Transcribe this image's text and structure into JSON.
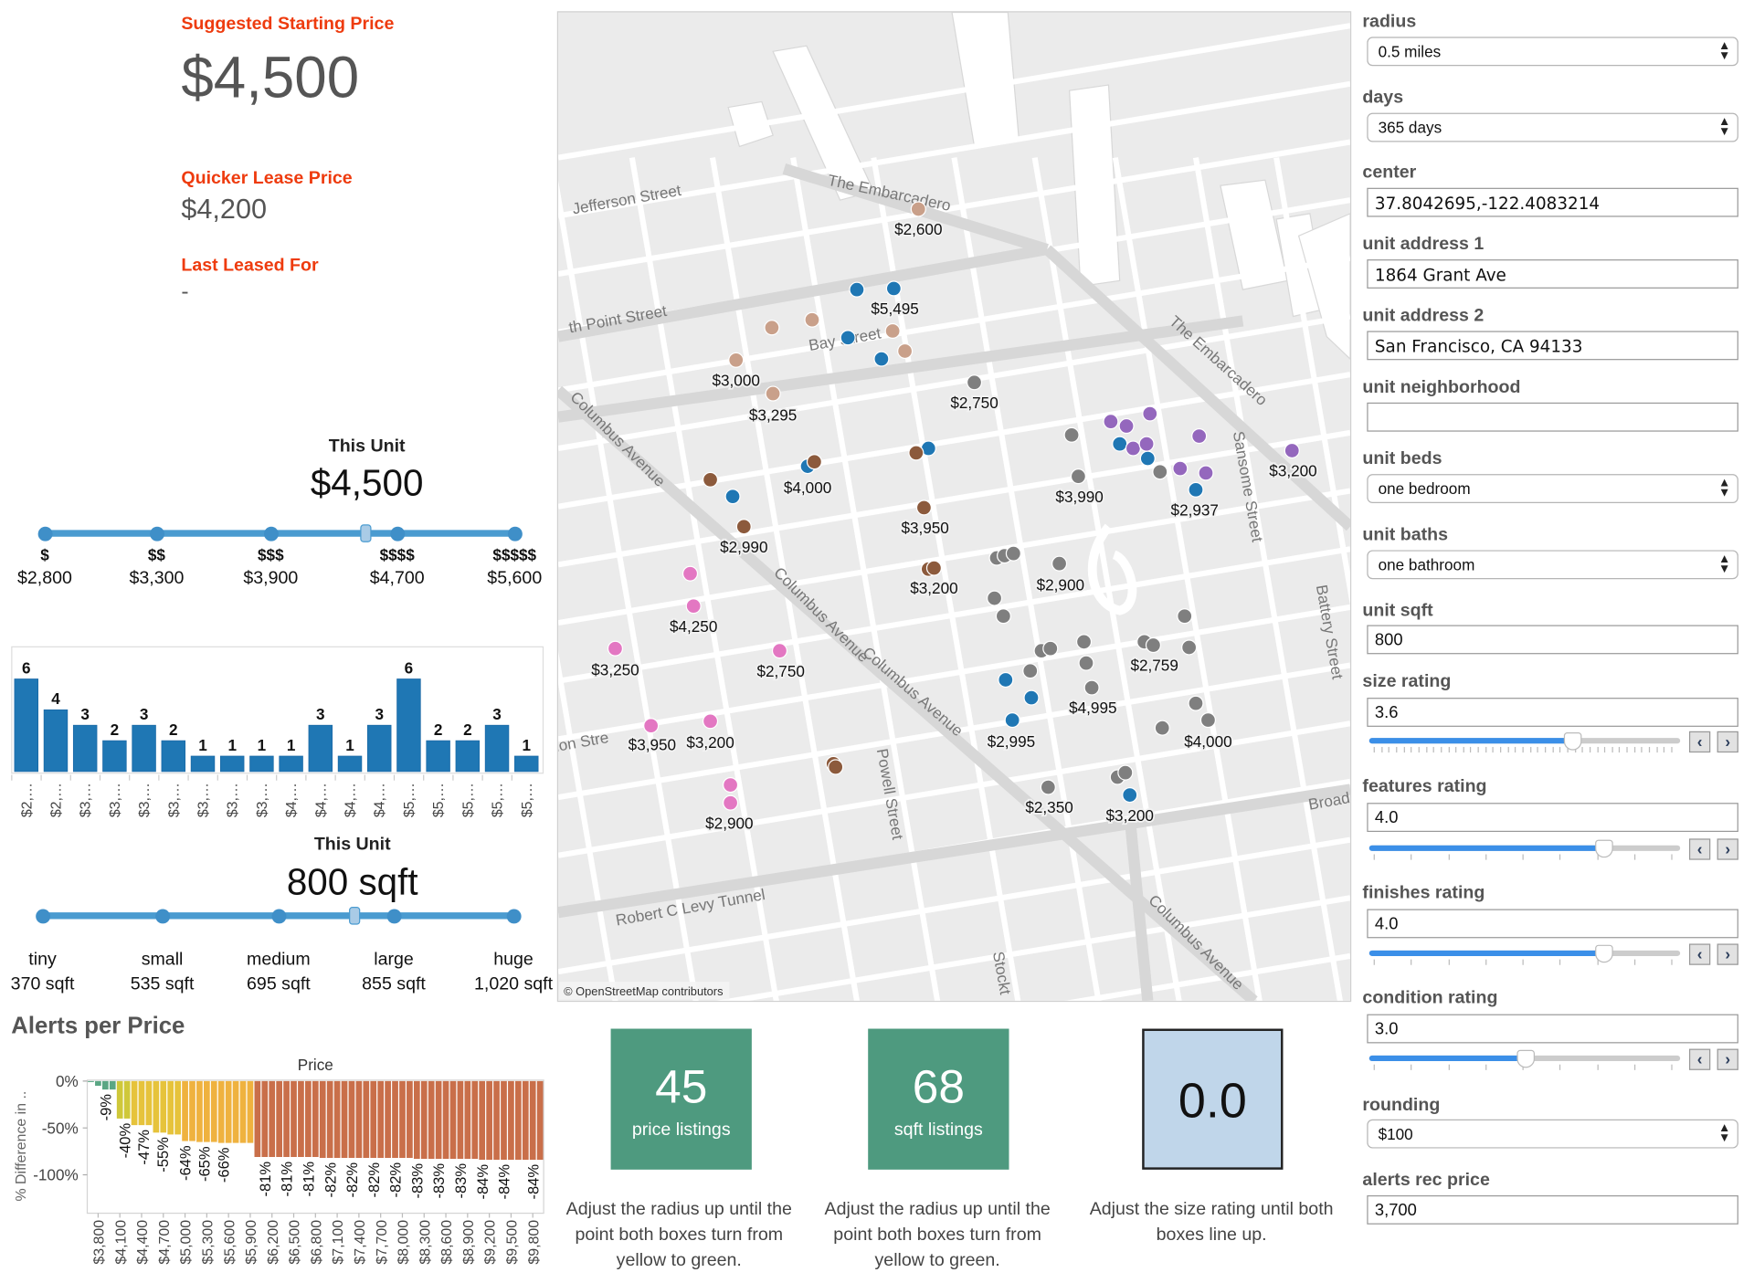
{
  "summary": {
    "suggested_label": "Suggested Starting Price",
    "suggested_value": "$4,500",
    "quicker_label": "Quicker Lease Price",
    "quicker_value": "$4,200",
    "last_label": "Last Leased For",
    "last_value": "-"
  },
  "price_scale": {
    "title": "This Unit",
    "value_text": "$4,500",
    "value": 4500,
    "tiers": [
      {
        "symbol": "$",
        "price": "$2,800",
        "value": 2800
      },
      {
        "symbol": "$$",
        "price": "$3,300",
        "value": 3300
      },
      {
        "symbol": "$$$",
        "price": "$3,900",
        "value": 3900
      },
      {
        "symbol": "$$$$",
        "price": "$4,700",
        "value": 4700
      },
      {
        "symbol": "$$$$$",
        "price": "$5,600",
        "value": 5600
      }
    ]
  },
  "size_scale": {
    "title": "This Unit",
    "value_text": "800 sqft",
    "value": 800,
    "tiers": [
      {
        "name": "tiny",
        "sqft": "370 sqft",
        "value": 370
      },
      {
        "name": "small",
        "sqft": "535 sqft",
        "value": 535
      },
      {
        "name": "medium",
        "sqft": "695 sqft",
        "value": 695
      },
      {
        "name": "large",
        "sqft": "855 sqft",
        "value": 855
      },
      {
        "name": "huge",
        "sqft": "1,020 sqft",
        "value": 1020
      }
    ]
  },
  "chart_data": [
    {
      "type": "bar",
      "categories": [
        "$2,…",
        "$2,…",
        "$3,…",
        "$3,…",
        "$3,…",
        "$3,…",
        "$3,…",
        "$3,…",
        "$3,…",
        "$4,…",
        "$4,…",
        "$4,…",
        "$4,…",
        "$5,…",
        "$5,…",
        "$5,…",
        "$5,…",
        "$5,…"
      ],
      "values": [
        6,
        4,
        3,
        2,
        3,
        2,
        1,
        1,
        1,
        1,
        3,
        1,
        3,
        6,
        2,
        2,
        3,
        1
      ],
      "ylim": [
        0,
        6.5
      ],
      "color": "#1f77b4",
      "data_labels": true
    },
    {
      "type": "bar",
      "title": "Alerts per Price",
      "xlabel": "Price",
      "ylabel": "% Difference in ..",
      "ylim": [
        -141,
        1
      ],
      "yticks": [
        {
          "value": 0,
          "label": "0%"
        },
        {
          "value": -50,
          "label": "-50%"
        },
        {
          "value": -100,
          "label": "-100%"
        }
      ],
      "categories": [
        "$3,700",
        "$3,800",
        "$3,900",
        "$4,000",
        "$4,100",
        "$4,200",
        "$4,300",
        "$4,400",
        "$4,500",
        "$4,600",
        "$4,700",
        "$4,800",
        "$4,900",
        "$5,000",
        "$5,100",
        "$5,200",
        "$5,300",
        "$5,400",
        "$5,500",
        "$5,600",
        "$5,700",
        "$5,800",
        "$5,900",
        "$6,000",
        "$6,100",
        "$6,200",
        "$6,300",
        "$6,400",
        "$6,500",
        "$6,600",
        "$6,700",
        "$6,800",
        "$6,900",
        "$7,000",
        "$7,100",
        "$7,200",
        "$7,300",
        "$7,400",
        "$7,500",
        "$7,600",
        "$7,700",
        "$7,800",
        "$7,900",
        "$8,000",
        "$8,100",
        "$8,200",
        "$8,300",
        "$8,400",
        "$8,500",
        "$8,600",
        "$8,700",
        "$8,800",
        "$8,900",
        "$9,000",
        "$9,100",
        "$9,200",
        "$9,300",
        "$9,400",
        "$9,500",
        "$9,600",
        "$9,700",
        "$9,800",
        "$9,900"
      ],
      "values": [
        -1,
        -5,
        -9,
        -9,
        -40,
        -40,
        -47,
        -47,
        -47,
        -55,
        -55,
        -57,
        -57,
        -64,
        -64,
        -65,
        -65,
        -65,
        -66,
        -66,
        -66,
        -66,
        -66,
        -81,
        -81,
        -81,
        -81,
        -81,
        -81,
        -81,
        -81,
        -81,
        -82,
        -82,
        -82,
        -82,
        -82,
        -82,
        -82,
        -82,
        -82,
        -82,
        -82,
        -82,
        -82,
        -83,
        -83,
        -83,
        -83,
        -83,
        -83,
        -83,
        -83,
        -83,
        -84,
        -84,
        -84,
        -84,
        -84,
        -84,
        -84,
        -84,
        -84
      ],
      "xtick_labels": [
        "$3,800",
        "$4,100",
        "$4,400",
        "$4,700",
        "$5,000",
        "$5,300",
        "$5,600",
        "$5,900",
        "$6,200",
        "$6,500",
        "$6,800",
        "$7,100",
        "$7,400",
        "$7,700",
        "$8,000",
        "$8,300",
        "$8,600",
        "$8,900",
        "$9,200",
        "$9,500",
        "$9,800"
      ],
      "data_labels": [
        {
          "category": "$3,900",
          "text": "-9%"
        },
        {
          "category": "$4,100",
          "text": "-40%"
        },
        {
          "category": "$4,300",
          "text": "-47%"
        },
        {
          "category": "$4,600",
          "text": "-55%"
        },
        {
          "category": "$5,000",
          "text": "-64%"
        },
        {
          "category": "$5,200",
          "text": "-65%"
        },
        {
          "category": "$5,500",
          "text": "-66%"
        },
        {
          "category": "$6,100",
          "text": "-81%"
        },
        {
          "category": "$6,400",
          "text": "-81%"
        },
        {
          "category": "$6,700",
          "text": "-81%"
        },
        {
          "category": "$7,000",
          "text": "-82%"
        },
        {
          "category": "$7,300",
          "text": "-82%"
        },
        {
          "category": "$7,600",
          "text": "-82%"
        },
        {
          "category": "$7,900",
          "text": "-82%"
        },
        {
          "category": "$8,200",
          "text": "-83%"
        },
        {
          "category": "$8,500",
          "text": "-83%"
        },
        {
          "category": "$8,800",
          "text": "-83%"
        },
        {
          "category": "$9,100",
          "text": "-84%"
        },
        {
          "category": "$9,400",
          "text": "-84%"
        },
        {
          "category": "$9,800",
          "text": "-84%"
        }
      ],
      "colors": {
        "small": "#5aa684",
        "forty": "#cfc83a",
        "fifty": "#e6c33b",
        "sixty": "#efb23f",
        "eighty": "#c96f4a"
      },
      "grid": false
    }
  ],
  "map": {
    "attribution": "© OpenStreetMap contributors",
    "street_labels": [
      "Jefferson Street",
      "The Embarcadero",
      "th Point Street",
      "Bay Street",
      "The Embarcadero",
      "Columbus Avenue",
      "Sansome Street",
      "Columbus Avenue",
      "Battery Street",
      "Columbus Avenue",
      "Powell Street",
      "ion Stre",
      "Broad",
      "Robert C Levy Tunnel",
      "Columbus Avenue",
      "Stockt"
    ],
    "price_labels": [
      "$2,600",
      "$5,495",
      "$3,000",
      "$3,295",
      "$2,750",
      "$4,000",
      "$3,950",
      "$3,990",
      "$2,937",
      "$3,200",
      "$2,990",
      "$3,200",
      "$2,900",
      "$4,250",
      "$3,250",
      "$2,750",
      "$2,759",
      "$4,995",
      "$3,950",
      "$3,200",
      "$2,995",
      "$4,000",
      "$2,900",
      "$2,350",
      "$3,200"
    ],
    "marker_colors": {
      "tan": "#c9a08a",
      "blue": "#1f77b4",
      "brown": "#8c5a3c",
      "grey": "#7f7f7f",
      "purple": "#9467bd",
      "pink": "#e377c2"
    }
  },
  "stats": [
    {
      "value": "45",
      "label": "price listings",
      "note": "Adjust the radius up until the point both boxes turn from yellow to green.",
      "color": "#4e9a7f"
    },
    {
      "value": "68",
      "label": "sqft listings",
      "note": "Adjust the radius up until the point both boxes turn from yellow to green.",
      "color": "#4e9a7f"
    },
    {
      "value": "0.0",
      "label": "",
      "note": "Adjust the size rating until both boxes line up.",
      "color": "#c0d6ea"
    }
  ],
  "controls": {
    "radius": {
      "label": "radius",
      "value": "0.5 miles"
    },
    "days": {
      "label": "days",
      "value": "365 days"
    },
    "center": {
      "label": "center",
      "value": "37.8042695,-122.4083214"
    },
    "address1": {
      "label": "unit address 1",
      "value": "1864 Grant Ave"
    },
    "address2": {
      "label": "unit address 2",
      "value": "San Francisco, CA 94133"
    },
    "neighborhood": {
      "label": "unit neighborhood",
      "value": ""
    },
    "beds": {
      "label": "unit beds",
      "value": "one bedroom"
    },
    "baths": {
      "label": "unit baths",
      "value": "one bathroom"
    },
    "sqft": {
      "label": "unit sqft",
      "value": "800"
    },
    "size_rating": {
      "label": "size rating",
      "value": "3.6",
      "level": 3.6,
      "min": 1,
      "max": 5
    },
    "features_rating": {
      "label": "features rating",
      "value": "4.0",
      "level": 4.0,
      "min": 1,
      "max": 5
    },
    "finishes_rating": {
      "label": "finishes rating",
      "value": "4.0",
      "level": 4.0,
      "min": 1,
      "max": 5
    },
    "condition_rating": {
      "label": "condition rating",
      "value": "3.0",
      "level": 3.0,
      "min": 1,
      "max": 5
    },
    "rounding": {
      "label": "rounding",
      "value": "$100"
    },
    "alerts_rec_price": {
      "label": "alerts rec price",
      "value": "3,700"
    },
    "prev_label": "‹",
    "next_label": "›",
    "select_arrows": "▲▼"
  }
}
